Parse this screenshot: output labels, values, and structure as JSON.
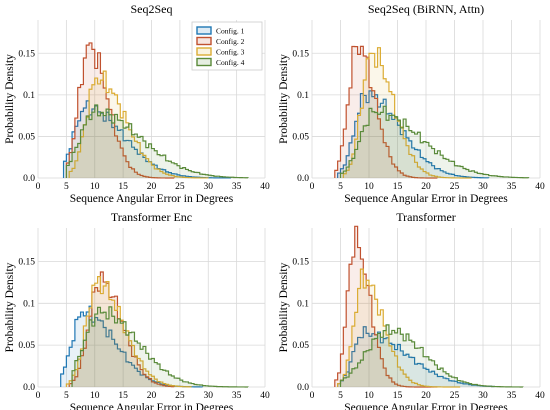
{
  "chart_data": [
    {
      "type": "histogram-step",
      "title": "Seq2Seq",
      "xlabel": "Sequence Angular Error in Degrees",
      "ylabel": "Probability Density",
      "xlim": [
        0,
        40
      ],
      "ylim": [
        0,
        0.19
      ],
      "xticks": [
        0,
        5,
        10,
        15,
        20,
        25,
        30,
        35,
        40
      ],
      "yticks": [
        0.0,
        0.05,
        0.1,
        0.15
      ],
      "grid": true,
      "legend": {
        "placement": "top-right",
        "entries": [
          "Config. 1",
          "Config. 2",
          "Config. 3",
          "Config. 4"
        ]
      },
      "series": [
        {
          "name": "Config. 1",
          "color": "#1f77b4",
          "peak": 8.5,
          "sl": 2.2,
          "sr": 6.5,
          "amp": 0.085,
          "start": 4.5,
          "end": 34
        },
        {
          "name": "Config. 2",
          "color": "#c0512f",
          "peak": 9.0,
          "sl": 1.8,
          "sr": 3.3,
          "amp": 0.158,
          "start": 5.0,
          "end": 24
        },
        {
          "name": "Config. 3",
          "color": "#dbac34",
          "peak": 10.5,
          "sl": 2.0,
          "sr": 4.8,
          "amp": 0.12,
          "start": 5.5,
          "end": 30
        },
        {
          "name": "Config. 4",
          "color": "#5a8a3a",
          "peak": 10.0,
          "sl": 2.6,
          "sr": 8.0,
          "amp": 0.08,
          "start": 5.0,
          "end": 37
        }
      ]
    },
    {
      "type": "histogram-step",
      "title": "Seq2Seq (BiRNN, Attn)",
      "xlabel": "Sequence Angular Error in Degrees",
      "ylabel": "Probability Density",
      "xlim": [
        0,
        40
      ],
      "ylim": [
        0,
        0.19
      ],
      "xticks": [
        0,
        5,
        10,
        15,
        20,
        25,
        30,
        35,
        40
      ],
      "yticks": [
        0.0,
        0.05,
        0.1,
        0.15
      ],
      "grid": true,
      "series": [
        {
          "name": "Config. 1",
          "color": "#1f77b4",
          "peak": 9.5,
          "sl": 2.0,
          "sr": 6.0,
          "amp": 0.1,
          "start": 4.5,
          "end": 31
        },
        {
          "name": "Config. 2",
          "color": "#c0512f",
          "peak": 8.0,
          "sl": 1.6,
          "sr": 3.0,
          "amp": 0.16,
          "start": 4.0,
          "end": 22
        },
        {
          "name": "Config. 3",
          "color": "#dbac34",
          "peak": 10.5,
          "sl": 1.8,
          "sr": 3.8,
          "amp": 0.15,
          "start": 5.5,
          "end": 28
        },
        {
          "name": "Config. 4",
          "color": "#5a8a3a",
          "peak": 11.0,
          "sl": 2.5,
          "sr": 8.0,
          "amp": 0.08,
          "start": 5.0,
          "end": 38
        }
      ]
    },
    {
      "type": "histogram-step",
      "title": "Transformer Enc",
      "xlabel": "Sequence Angular Error in Degrees",
      "ylabel": "Probability Density",
      "xlim": [
        0,
        40
      ],
      "ylim": [
        0,
        0.19
      ],
      "xticks": [
        0,
        5,
        10,
        15,
        20,
        25,
        30,
        35,
        40
      ],
      "yticks": [
        0.0,
        0.05,
        0.1,
        0.15
      ],
      "grid": true,
      "series": [
        {
          "name": "Config. 1",
          "color": "#1f77b4",
          "peak": 8.0,
          "sl": 2.0,
          "sr": 5.5,
          "amp": 0.09,
          "start": 4.0,
          "end": 29
        },
        {
          "name": "Config. 2",
          "color": "#c0512f",
          "peak": 11.0,
          "sl": 2.0,
          "sr": 3.8,
          "amp": 0.128,
          "start": 5.5,
          "end": 24
        },
        {
          "name": "Config. 3",
          "color": "#dbac34",
          "peak": 10.5,
          "sl": 2.0,
          "sr": 4.5,
          "amp": 0.125,
          "start": 5.0,
          "end": 27
        },
        {
          "name": "Config. 4",
          "color": "#5a8a3a",
          "peak": 11.0,
          "sl": 2.8,
          "sr": 6.5,
          "amp": 0.09,
          "start": 6.0,
          "end": 37
        }
      ]
    },
    {
      "type": "histogram-step",
      "title": "Transformer",
      "xlabel": "Sequence Angular Error in Degrees",
      "ylabel": "Probability Density",
      "xlim": [
        0,
        40
      ],
      "ylim": [
        0,
        0.19
      ],
      "xticks": [
        0,
        5,
        10,
        15,
        20,
        25,
        30,
        35,
        40
      ],
      "yticks": [
        0.0,
        0.05,
        0.1,
        0.15
      ],
      "grid": true,
      "series": [
        {
          "name": "Config. 1",
          "color": "#1f77b4",
          "peak": 9.0,
          "sl": 1.8,
          "sr": 7.5,
          "amp": 0.065,
          "start": 4.5,
          "end": 32
        },
        {
          "name": "Config. 2",
          "color": "#c0512f",
          "peak": 7.5,
          "sl": 1.3,
          "sr": 2.6,
          "amp": 0.175,
          "start": 4.0,
          "end": 22
        },
        {
          "name": "Config. 3",
          "color": "#dbac34",
          "peak": 9.0,
          "sl": 1.6,
          "sr": 3.5,
          "amp": 0.13,
          "start": 4.5,
          "end": 26
        },
        {
          "name": "Config. 4",
          "color": "#5a8a3a",
          "peak": 13.5,
          "sl": 4.0,
          "sr": 6.0,
          "amp": 0.068,
          "start": 5.0,
          "end": 37
        }
      ]
    }
  ]
}
